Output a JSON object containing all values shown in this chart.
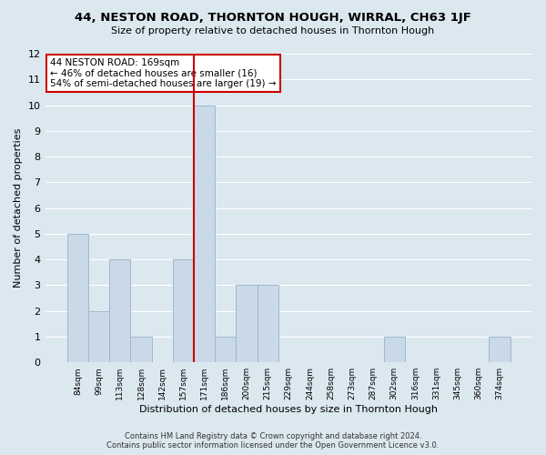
{
  "title": "44, NESTON ROAD, THORNTON HOUGH, WIRRAL, CH63 1JF",
  "subtitle": "Size of property relative to detached houses in Thornton Hough",
  "xlabel": "Distribution of detached houses by size in Thornton Hough",
  "ylabel": "Number of detached properties",
  "footer_lines": [
    "Contains HM Land Registry data © Crown copyright and database right 2024.",
    "Contains public sector information licensed under the Open Government Licence v3.0."
  ],
  "bin_labels": [
    "84sqm",
    "99sqm",
    "113sqm",
    "128sqm",
    "142sqm",
    "157sqm",
    "171sqm",
    "186sqm",
    "200sqm",
    "215sqm",
    "229sqm",
    "244sqm",
    "258sqm",
    "273sqm",
    "287sqm",
    "302sqm",
    "316sqm",
    "331sqm",
    "345sqm",
    "360sqm",
    "374sqm"
  ],
  "bar_heights": [
    5,
    2,
    4,
    1,
    0,
    4,
    10,
    1,
    3,
    3,
    0,
    0,
    0,
    0,
    0,
    1,
    0,
    0,
    0,
    0,
    1
  ],
  "bar_color": "#c9d9e8",
  "bar_edge_color": "#a0b8cc",
  "highlight_index": 6,
  "highlight_line_color": "#cc0000",
  "annotation_title": "44 NESTON ROAD: 169sqm",
  "annotation_line1": "← 46% of detached houses are smaller (16)",
  "annotation_line2": "54% of semi-detached houses are larger (19) →",
  "annotation_box_edge": "#cc0000",
  "ylim": [
    0,
    12
  ],
  "yticks": [
    0,
    1,
    2,
    3,
    4,
    5,
    6,
    7,
    8,
    9,
    10,
    11,
    12
  ],
  "grid_color": "#ffffff",
  "bg_color": "#dce8f0",
  "plot_bg_color": "#dce8f0"
}
